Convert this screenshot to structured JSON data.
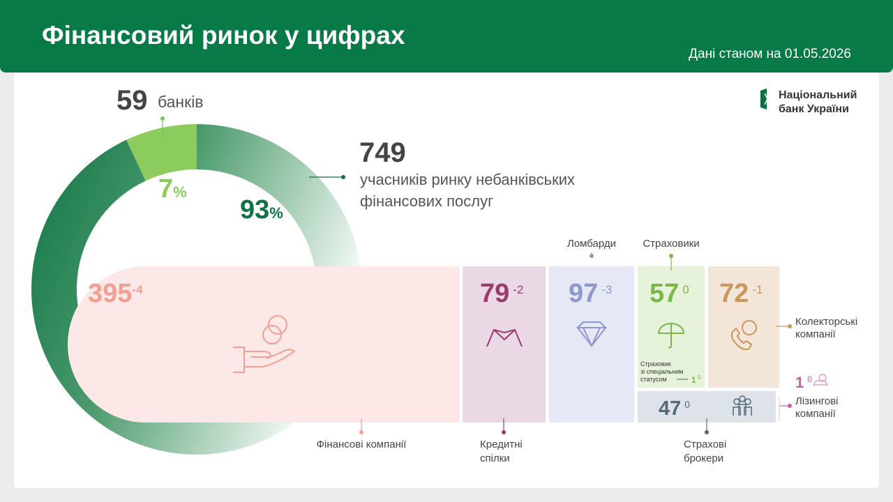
{
  "header": {
    "title": "Фінансовий ринок у цифрах",
    "date": "Дані станом на 01.05.2026"
  },
  "logo": {
    "lines": [
      "Національний",
      "банк України"
    ]
  },
  "banks": {
    "count": 59,
    "label": "банків",
    "share": 7,
    "unit": "%"
  },
  "nonbank": {
    "count": 749,
    "label": [
      "учасників ринку небанківських",
      "фінансових послуг"
    ],
    "share": 93,
    "unit": "%"
  },
  "segments": [
    {
      "label": [
        "Фінансові компанії"
      ],
      "count": 395,
      "change": -4
    },
    {
      "label": [
        "Кредитні",
        "спілки"
      ],
      "count": 79,
      "change": -2
    },
    {
      "label": [
        "Ломбарди"
      ],
      "count": 97,
      "change": -3
    },
    {
      "label": [
        "Страховики"
      ],
      "count": 57,
      "change": 0
    },
    {
      "label": [
        "Колекторські",
        "компанії"
      ],
      "count": 72,
      "change": -1
    },
    {
      "label": [
        "Страхові",
        "брокери"
      ],
      "count": 47,
      "change": 0
    },
    {
      "label": [
        "Лізингові",
        "компанії"
      ],
      "count": 1,
      "change": 0
    },
    {
      "label": [
        "Страховик",
        "зі спеціальним",
        "статусом"
      ],
      "count": 1,
      "change": 0
    }
  ]
}
